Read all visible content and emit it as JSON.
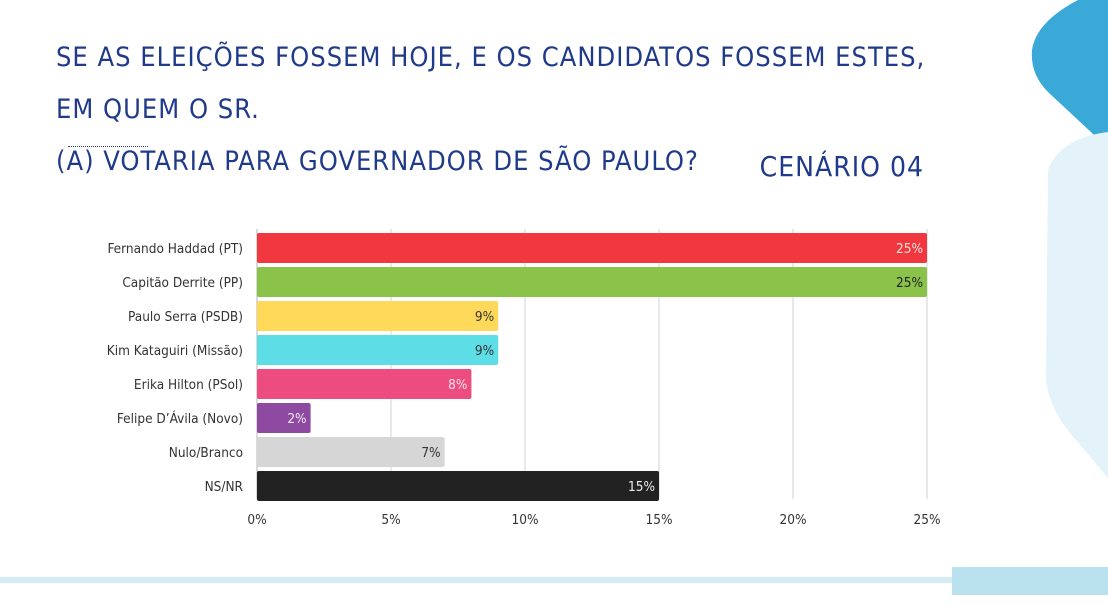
{
  "title_lines": [
    "SE AS ELEIÇÕES FOSSEM HOJE, E OS CANDIDATOS FOSSEM ESTES, EM QUEM O SR.",
    "(A) VOTARIA PARA GOVERNADOR DE SÃO PAULO?"
  ],
  "scenario": "CENÁRIO 04",
  "colors": {
    "title": "#1f3a8a",
    "accent_blue": "#3aa9d8",
    "accent_light": "#e3f3f9"
  },
  "chart_data": {
    "type": "bar",
    "orientation": "horizontal",
    "categories": [
      "Fernando Haddad (PT)",
      "Capitão Derrite (PP)",
      "Paulo Serra (PSDB)",
      "Kim Kataguiri (Missão)",
      "Erika Hilton (PSol)",
      "Felipe D’Ávila (Novo)",
      "Nulo/Branco",
      "NS/NR"
    ],
    "values": [
      25,
      25,
      9,
      9,
      8,
      2,
      7,
      15
    ],
    "value_labels": [
      "25%",
      "25%",
      "9%",
      "9%",
      "8%",
      "2%",
      "7%",
      "15%"
    ],
    "bar_colors": [
      "#f2383f",
      "#8bc34a",
      "#ffd95a",
      "#5ddde6",
      "#ec4c7f",
      "#8e4aa0",
      "#d6d6d6",
      "#222222"
    ],
    "label_colors": [
      "#fde0e0",
      "#222222",
      "#333333",
      "#333333",
      "#fde0e8",
      "#f3e6f6",
      "#333333",
      "#eeeeee"
    ],
    "xlim": [
      0,
      25
    ],
    "x_ticks": [
      0,
      5,
      10,
      15,
      20,
      25
    ],
    "x_tick_labels": [
      "0%",
      "5%",
      "10%",
      "15%",
      "20%",
      "25%"
    ],
    "grid": true,
    "legend": "none"
  }
}
